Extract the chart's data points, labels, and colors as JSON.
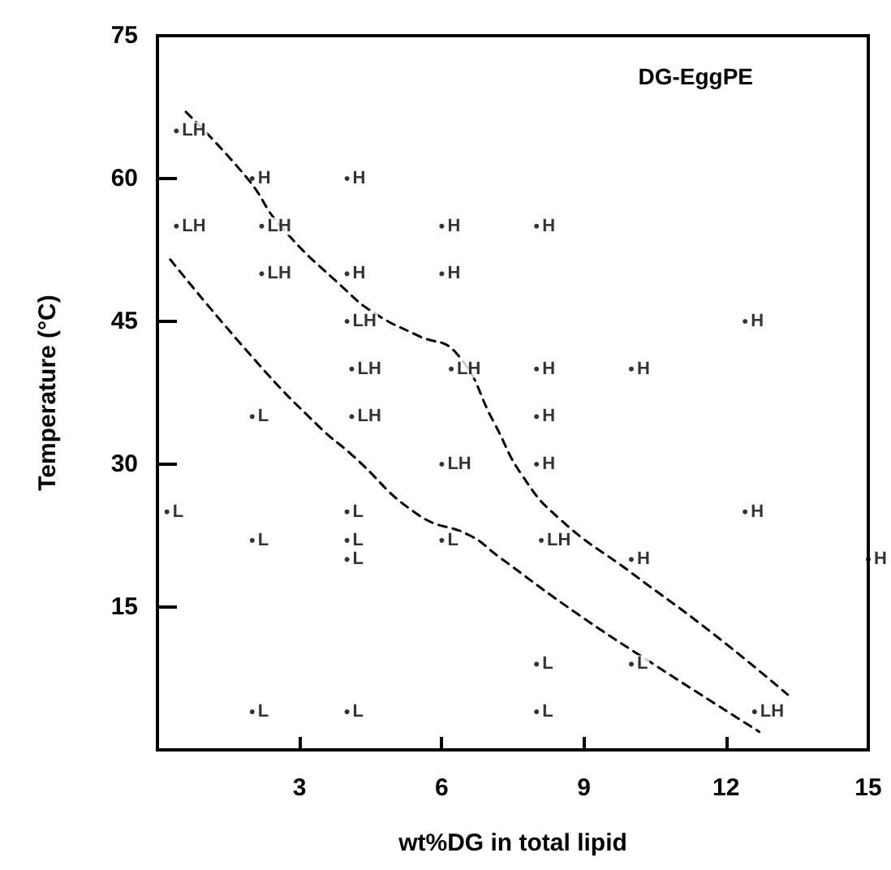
{
  "chart_data": {
    "type": "scatter",
    "xlabel": "wt%DG in total lipid",
    "ylabel": "Temperature (°C)",
    "annotations": [
      "DG-EggPE"
    ],
    "xlim": [
      0,
      15
    ],
    "xticks": [
      3,
      6,
      9,
      12,
      15
    ],
    "ylim": [
      0,
      75
    ],
    "yticks": [
      15,
      30,
      45,
      60,
      75
    ],
    "grid": false,
    "legend": false,
    "series": [
      {
        "name": "L",
        "color": "#000000",
        "marker": "circle",
        "x": [
          2,
          0.2,
          4,
          2,
          4,
          4,
          6,
          2,
          4,
          8,
          10,
          8
        ],
        "values": [
          35,
          25,
          25,
          22,
          22,
          20,
          22,
          4,
          4,
          9,
          9,
          4
        ]
      },
      {
        "name": "H",
        "color": "#000000",
        "marker": "circle",
        "x": [
          2,
          4,
          6,
          4,
          6,
          8,
          12.4,
          8,
          10,
          8,
          8,
          12.4,
          10,
          15
        ],
        "values": [
          60,
          60,
          55,
          50,
          50,
          55,
          45,
          40,
          40,
          35,
          30,
          25,
          20,
          20
        ]
      },
      {
        "name": "LH",
        "color": "#000000",
        "marker": "circle",
        "x": [
          0.4,
          0.4,
          2.2,
          2.2,
          4,
          4.1,
          6.2,
          4.1,
          6,
          8.1,
          12.6
        ],
        "values": [
          65,
          55,
          55,
          50,
          45,
          40,
          40,
          35,
          30,
          22,
          4
        ]
      },
      {
        "type": "line",
        "color": "#000000",
        "line_style": "dashed",
        "x": [
          0.6,
          1.9,
          2.6,
          3.95,
          4.6,
          5.5,
          6.3,
          7.1,
          7.7,
          8.5,
          10,
          11.7,
          13.3
        ],
        "values": [
          67,
          60,
          55,
          48.4,
          45.8,
          43.5,
          41.7,
          34.4,
          28.8,
          24.2,
          18.6,
          12.3,
          5.8
        ]
      },
      {
        "type": "line",
        "color": "#000000",
        "line_style": "dashed",
        "x": [
          0.27,
          2.1,
          3.4,
          4.1,
          5.5,
          6.6,
          7.2,
          8.8,
          10.5,
          12.7
        ],
        "values": [
          51.5,
          40.7,
          34,
          31,
          24.7,
          22.5,
          20.3,
          14.5,
          8.9,
          1.9
        ]
      }
    ]
  }
}
